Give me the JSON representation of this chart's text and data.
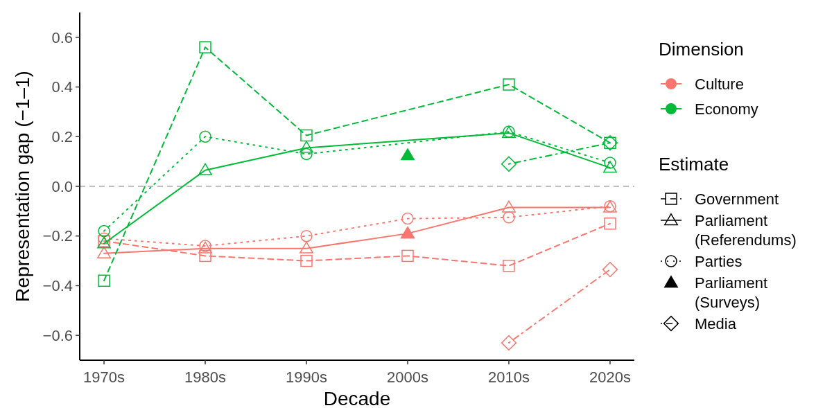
{
  "chart_data": {
    "type": "line",
    "xlabel": "Decade",
    "ylabel": "Representation gap (−1–1)",
    "legend_title": "Dimension",
    "categories": [
      "1970s",
      "1980s",
      "1990s",
      "2000s",
      "2010s",
      "2020s"
    ],
    "ylim": [
      -0.7,
      0.7
    ],
    "yticks": [
      {
        "value": -0.6,
        "label": "−0.6"
      },
      {
        "value": -0.4,
        "label": "−0.4"
      },
      {
        "value": -0.2,
        "label": "−0.2"
      },
      {
        "value": 0,
        "label": "0.0"
      },
      0.2,
      0.4,
      0.6
    ],
    "grid": false,
    "ref_lines": [
      {
        "axis": "y",
        "value": 0,
        "color": "#bebebe",
        "line_style": "dashed"
      }
    ],
    "annotations": [
      "Culture",
      "Economy",
      "Estimate",
      "Government",
      "Parliament\n(Referendums)",
      "Parties",
      "Parliament\n(Surveys)",
      "Media"
    ],
    "series": [
      {
        "color": "#f8766d",
        "marker": "square",
        "line_style": "dashed",
        "values": [
          -0.22,
          -0.28,
          -0.3,
          -0.28,
          -0.32,
          -0.15
        ]
      },
      {
        "color": "#f8766d",
        "marker": "triangle",
        "line_style": "solid",
        "values": [
          -0.27,
          -0.25,
          -0.25,
          -0.19,
          -0.085,
          -0.085
        ]
      },
      {
        "color": "#f8766d",
        "marker": "circle",
        "line_style": "dotted",
        "values": [
          -0.21,
          -0.24,
          -0.2,
          -0.13,
          -0.125,
          -0.08
        ]
      },
      {
        "color": "#f8766d",
        "marker": "triangle-filled",
        "line_style": "none",
        "values": [
          null,
          null,
          null,
          -0.19,
          null,
          null
        ]
      },
      {
        "color": "#f8766d",
        "marker": "diamond",
        "line_style": "dashdot",
        "values": [
          null,
          null,
          null,
          null,
          -0.63,
          -0.335
        ]
      },
      {
        "color": "#00ba38",
        "marker": "square",
        "line_style": "dashed",
        "values": [
          -0.38,
          0.56,
          0.205,
          null,
          0.41,
          0.175
        ]
      },
      {
        "color": "#00ba38",
        "marker": "triangle",
        "line_style": "solid",
        "values": [
          -0.23,
          0.065,
          0.155,
          null,
          0.215,
          0.075
        ]
      },
      {
        "color": "#00ba38",
        "marker": "circle",
        "line_style": "dotted",
        "values": [
          -0.18,
          0.2,
          0.13,
          null,
          0.22,
          0.095
        ]
      },
      {
        "color": "#00ba38",
        "marker": "triangle-filled",
        "line_style": "none",
        "values": [
          null,
          null,
          null,
          0.125,
          null,
          null
        ]
      },
      {
        "color": "#00ba38",
        "marker": "diamond",
        "line_style": "dashdot",
        "values": [
          null,
          null,
          null,
          null,
          0.09,
          0.175
        ]
      }
    ]
  }
}
